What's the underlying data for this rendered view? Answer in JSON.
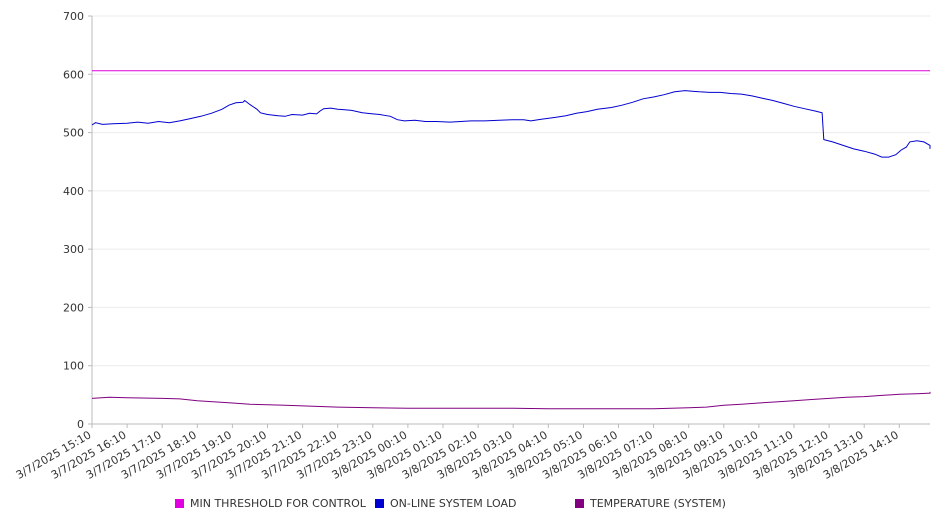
{
  "chart_data": {
    "type": "line",
    "title": "",
    "xlabel": "",
    "ylabel": "",
    "ylim": [
      0,
      700
    ],
    "yticks": [
      0,
      100,
      200,
      300,
      400,
      500,
      600,
      700
    ],
    "x_tick_labels": [
      "3/7/2025 15:10",
      "3/7/2025 16:10",
      "3/7/2025 17:10",
      "3/7/2025 18:10",
      "3/7/2025 19:10",
      "3/7/2025 20:10",
      "3/7/2025 21:10",
      "3/7/2025 22:10",
      "3/7/2025 23:10",
      "3/8/2025 00:10",
      "3/8/2025 01:10",
      "3/8/2025 02:10",
      "3/8/2025 03:10",
      "3/8/2025 04:10",
      "3/8/2025 05:10",
      "3/8/2025 06:10",
      "3/8/2025 07:10",
      "3/8/2025 08:10",
      "3/8/2025 09:10",
      "3/8/2025 10:10",
      "3/8/2025 11:10",
      "3/8/2025 12:10",
      "3/8/2025 13:10",
      "3/8/2025 14:10"
    ],
    "x_hours": [
      0,
      24
    ],
    "grid": true,
    "legend_position": "bottom",
    "series": [
      {
        "name": "MIN THRESHOLD FOR CONTROL",
        "color": "#e000e0",
        "points": [
          [
            0,
            606
          ],
          [
            24,
            606
          ]
        ]
      },
      {
        "name": "ON-LINE SYSTEM LOAD",
        "color": "#0000d0",
        "points": [
          [
            0,
            513
          ],
          [
            0.1,
            517
          ],
          [
            0.3,
            514
          ],
          [
            0.6,
            515
          ],
          [
            1,
            516
          ],
          [
            1.3,
            518
          ],
          [
            1.6,
            516
          ],
          [
            1.9,
            519
          ],
          [
            2.2,
            517
          ],
          [
            2.5,
            520
          ],
          [
            2.8,
            524
          ],
          [
            3.1,
            528
          ],
          [
            3.4,
            533
          ],
          [
            3.7,
            540
          ],
          [
            3.9,
            547
          ],
          [
            4.1,
            551
          ],
          [
            4.3,
            552
          ],
          [
            4.35,
            555
          ],
          [
            4.5,
            548
          ],
          [
            4.7,
            540
          ],
          [
            4.8,
            534
          ],
          [
            5,
            531
          ],
          [
            5.3,
            529
          ],
          [
            5.5,
            528
          ],
          [
            5.7,
            531
          ],
          [
            6,
            530
          ],
          [
            6.2,
            533
          ],
          [
            6.4,
            532
          ],
          [
            6.5,
            537
          ],
          [
            6.6,
            541
          ],
          [
            6.8,
            542
          ],
          [
            7,
            540
          ],
          [
            7.2,
            539
          ],
          [
            7.4,
            538
          ],
          [
            7.7,
            534
          ],
          [
            8,
            532
          ],
          [
            8.2,
            531
          ],
          [
            8.5,
            528
          ],
          [
            8.7,
            522
          ],
          [
            8.9,
            520
          ],
          [
            9.2,
            521
          ],
          [
            9.5,
            519
          ],
          [
            9.8,
            519
          ],
          [
            10.2,
            518
          ],
          [
            10.5,
            519
          ],
          [
            10.8,
            520
          ],
          [
            11.2,
            520
          ],
          [
            11.6,
            521
          ],
          [
            12,
            522
          ],
          [
            12.3,
            522
          ],
          [
            12.5,
            520
          ],
          [
            12.8,
            523
          ],
          [
            13.2,
            526
          ],
          [
            13.5,
            529
          ],
          [
            13.8,
            533
          ],
          [
            14.1,
            536
          ],
          [
            14.4,
            540
          ],
          [
            14.8,
            543
          ],
          [
            15.1,
            547
          ],
          [
            15.4,
            552
          ],
          [
            15.7,
            558
          ],
          [
            16,
            561
          ],
          [
            16.3,
            565
          ],
          [
            16.6,
            570
          ],
          [
            16.9,
            572
          ],
          [
            17.1,
            571
          ],
          [
            17.3,
            570
          ],
          [
            17.6,
            569
          ],
          [
            17.9,
            569
          ],
          [
            18.2,
            567
          ],
          [
            18.5,
            566
          ],
          [
            18.8,
            563
          ],
          [
            19.1,
            559
          ],
          [
            19.4,
            555
          ],
          [
            19.7,
            550
          ],
          [
            20,
            545
          ],
          [
            20.3,
            541
          ],
          [
            20.6,
            537
          ],
          [
            20.8,
            534
          ],
          [
            20.85,
            488
          ],
          [
            21.1,
            484
          ],
          [
            21.4,
            478
          ],
          [
            21.7,
            472
          ],
          [
            22,
            468
          ],
          [
            22.3,
            463
          ],
          [
            22.5,
            458
          ],
          [
            22.7,
            458
          ],
          [
            22.9,
            462
          ],
          [
            23.05,
            470
          ],
          [
            23.2,
            475
          ],
          [
            23.3,
            484
          ],
          [
            23.5,
            486
          ],
          [
            23.7,
            484
          ],
          [
            23.9,
            478
          ],
          [
            24,
            475
          ],
          [
            24.2,
            473
          ],
          [
            24.4,
            474
          ],
          [
            24.6,
            472
          ]
        ]
      },
      {
        "name": "TEMPERATURE (SYSTEM)",
        "color": "#800080",
        "points": [
          [
            0,
            44
          ],
          [
            0.5,
            46
          ],
          [
            1,
            45
          ],
          [
            2,
            44
          ],
          [
            2.5,
            43
          ],
          [
            3,
            40
          ],
          [
            3.5,
            38
          ],
          [
            4,
            36
          ],
          [
            4.5,
            34
          ],
          [
            5,
            33
          ],
          [
            5.5,
            32
          ],
          [
            6,
            31
          ],
          [
            6.5,
            30
          ],
          [
            7,
            29
          ],
          [
            8,
            28
          ],
          [
            9,
            27
          ],
          [
            10,
            27
          ],
          [
            11,
            27
          ],
          [
            12,
            27
          ],
          [
            13,
            26
          ],
          [
            14,
            26
          ],
          [
            15,
            26
          ],
          [
            16,
            26
          ],
          [
            16.5,
            27
          ],
          [
            17,
            28
          ],
          [
            17.5,
            29
          ],
          [
            18,
            32
          ],
          [
            18.5,
            34
          ],
          [
            19,
            36
          ],
          [
            19.5,
            38
          ],
          [
            20,
            40
          ],
          [
            20.5,
            42
          ],
          [
            21,
            44
          ],
          [
            21.5,
            46
          ],
          [
            22,
            47
          ],
          [
            22.5,
            49
          ],
          [
            23,
            51
          ],
          [
            23.5,
            52
          ],
          [
            24,
            53
          ],
          [
            24.6,
            55
          ]
        ]
      }
    ]
  }
}
